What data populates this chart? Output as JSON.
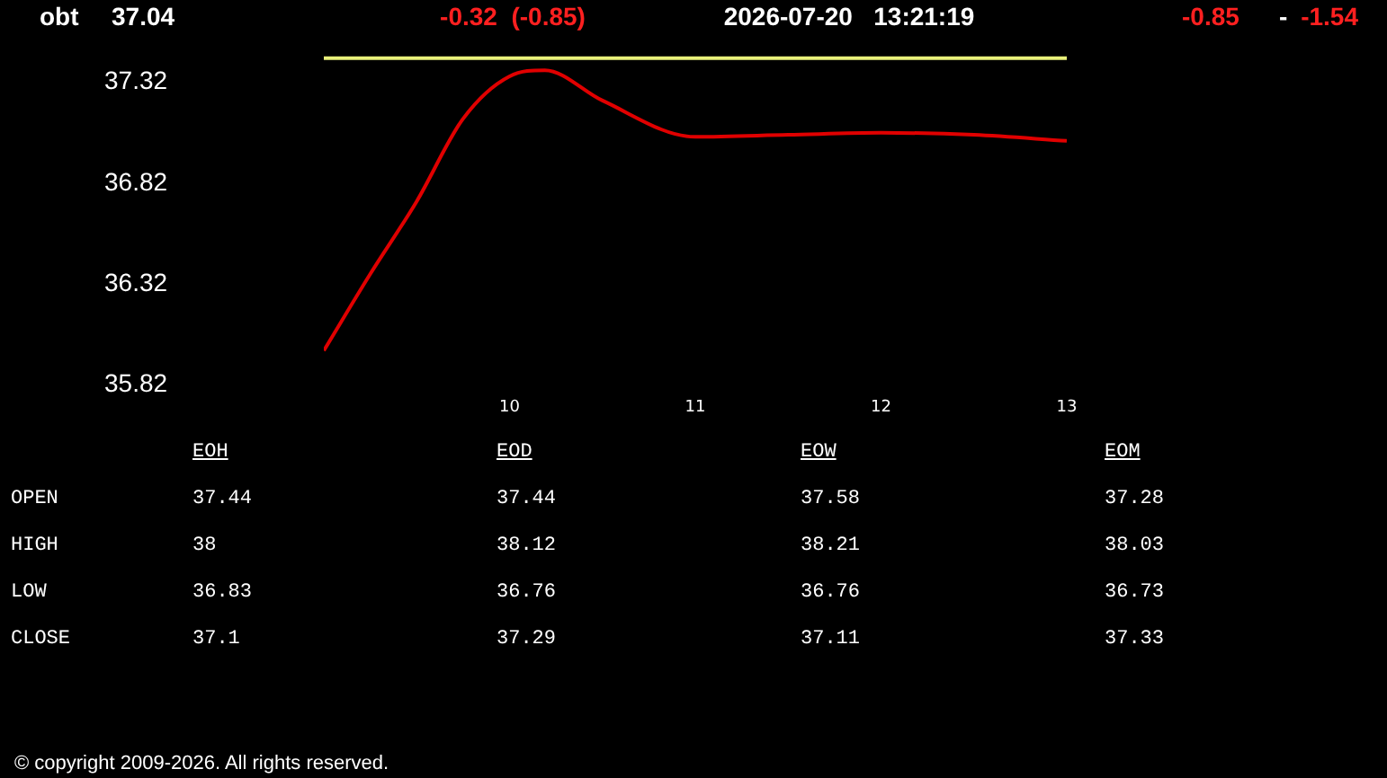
{
  "chart_data": [
    {
      "type": "line",
      "title": "obt",
      "annotations": [
        "37.04",
        "-0.32  (-0.85)",
        "2026-07-20   13:21:19",
        "-0.85",
        "-",
        "-1.54"
      ],
      "x": [
        9.0,
        9.25,
        9.5,
        9.75,
        10.0,
        10.19,
        10.5,
        11.0,
        11.5,
        12.0,
        12.5,
        13.0
      ],
      "series": [
        {
          "color": "#e00000",
          "values": [
            35.99,
            36.37,
            36.73,
            37.14,
            37.35,
            37.38,
            37.23,
            37.05,
            37.06,
            37.07,
            37.06,
            37.03
          ]
        }
      ],
      "ref_lines": [
        {
          "axis": "y",
          "value": 37.44,
          "color": "#e8f07a"
        }
      ],
      "xlim": [
        9,
        13
      ],
      "xticks": [
        10,
        11,
        12,
        13
      ],
      "ylim": [
        35.82,
        37.44
      ],
      "yticks": [
        35.82,
        36.32,
        36.82,
        37.32
      ],
      "grid": false,
      "legend": false,
      "marker": "none"
    },
    {
      "type": "other",
      "categories": [
        "EOH",
        "EOD",
        "EOW",
        "EOM"
      ],
      "series": [
        {
          "name": "OPEN",
          "values": [
            37.44,
            37.44,
            37.58,
            37.28
          ]
        },
        {
          "name": "HIGH",
          "values": [
            38,
            38.12,
            38.21,
            38.03
          ]
        },
        {
          "name": "LOW",
          "values": [
            36.83,
            36.76,
            36.76,
            36.73
          ]
        },
        {
          "name": "CLOSE",
          "values": [
            37.1,
            37.29,
            37.11,
            37.33
          ]
        }
      ],
      "data_labels": true,
      "annotations": [
        "© copyright 2009-2026. All rights reserved."
      ]
    }
  ]
}
